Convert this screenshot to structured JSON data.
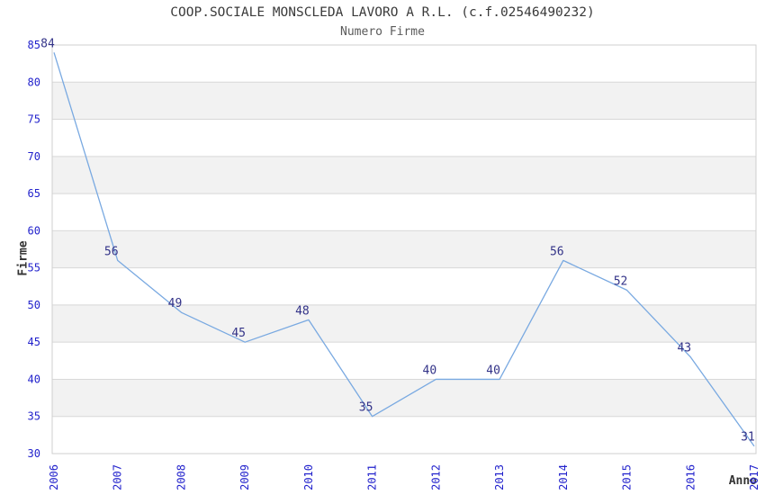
{
  "chart_data": {
    "type": "line",
    "title": "COOP.SOCIALE MONSCLEDA LAVORO A R.L. (c.f.02546490232)",
    "subtitle": "Numero Firme",
    "xlabel": "Anno",
    "ylabel": "Firme",
    "categories": [
      "2006",
      "2007",
      "2008",
      "2009",
      "2010",
      "2011",
      "2012",
      "2013",
      "2014",
      "2015",
      "2016",
      "2017"
    ],
    "values": [
      84,
      56,
      49,
      45,
      48,
      35,
      40,
      40,
      56,
      52,
      43,
      31
    ],
    "data_labels_shown": true,
    "ylim": [
      30,
      85
    ],
    "yticks": [
      30,
      35,
      40,
      45,
      50,
      55,
      60,
      65,
      70,
      75,
      80,
      85
    ],
    "grid": true,
    "band_pattern": "alternating horizontal gray bands between gridlines",
    "legend": "none",
    "colors": {
      "line": "#79a9e1",
      "tick_label": "#2222cc",
      "data_label": "#333388",
      "grid_line": "#d8d8d8",
      "plot_border": "#cfcfcf",
      "band": "#f2f2f2",
      "title": "#3a3a3a",
      "subtitle": "#5a5a5a",
      "axis_label": "#333333"
    }
  }
}
